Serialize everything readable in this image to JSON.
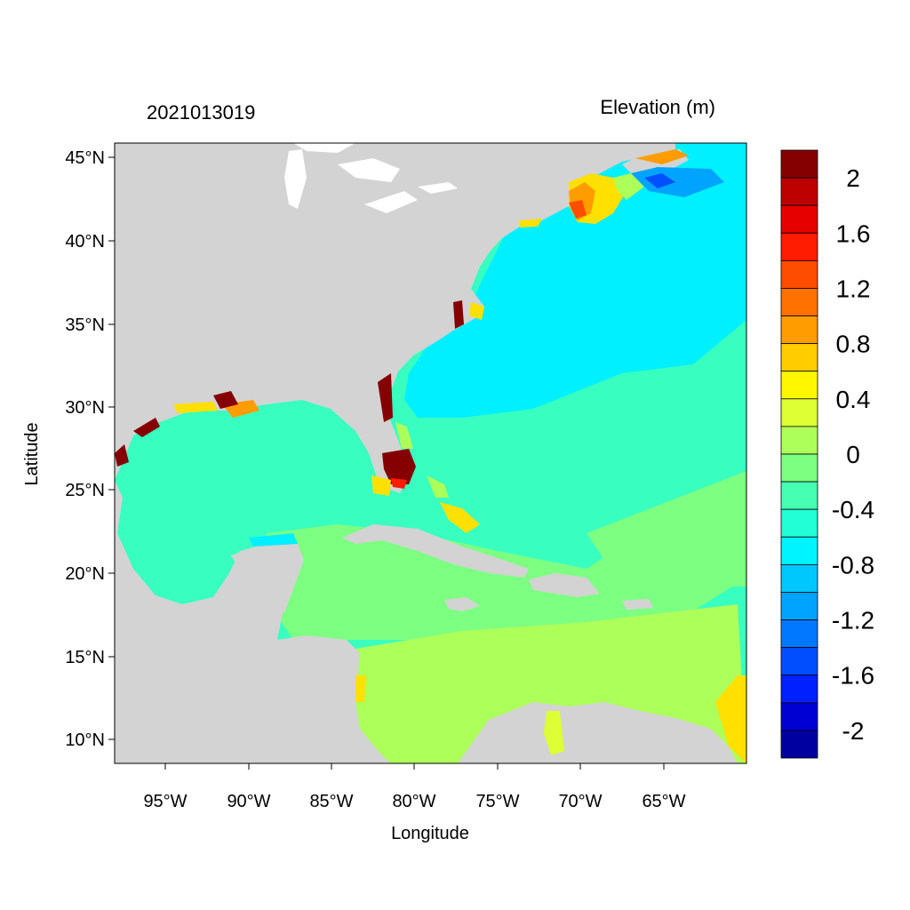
{
  "header": {
    "timestamp": "2021013019",
    "variable_title": "Elevation (m)"
  },
  "axes": {
    "xlabel": "Longitude",
    "ylabel": "Latitude",
    "x_ticks": [
      "95°W",
      "90°W",
      "85°W",
      "80°W",
      "75°W",
      "70°W",
      "65°W"
    ],
    "y_ticks": [
      "45°N",
      "40°N",
      "35°N",
      "30°N",
      "25°N",
      "20°N",
      "15°N",
      "10°N"
    ]
  },
  "colorbar": {
    "labels": [
      "2",
      "1.6",
      "1.2",
      "0.8",
      "0.4",
      "0",
      "-0.4",
      "-0.8",
      "-1.2",
      "-1.6",
      "-2"
    ],
    "colors_top_to_bottom": [
      "#850000",
      "#bd0000",
      "#e60000",
      "#ff1c00",
      "#ff4d00",
      "#ff7200",
      "#ff9c00",
      "#ffcc00",
      "#fff700",
      "#ddff33",
      "#adff5a",
      "#7dff82",
      "#47ffb3",
      "#22ffd6",
      "#00f4ff",
      "#00c8ff",
      "#00a4ff",
      "#0078ff",
      "#004eff",
      "#0020ff",
      "#0000d3",
      "#0000a0"
    ]
  },
  "colors": {
    "land": "#d3d3d3",
    "gulf": "#3dffbf",
    "atlantic_cyan": "#00f0ff",
    "atlantic_teal": "#38ffc0",
    "caribbean_north": "#7dff82",
    "caribbean_south": "#adff5a",
    "surge_high": "#850000",
    "surge_orange": "#ff9c00",
    "surge_yellow": "#ffe000",
    "low_blue": "#0050ff"
  }
}
